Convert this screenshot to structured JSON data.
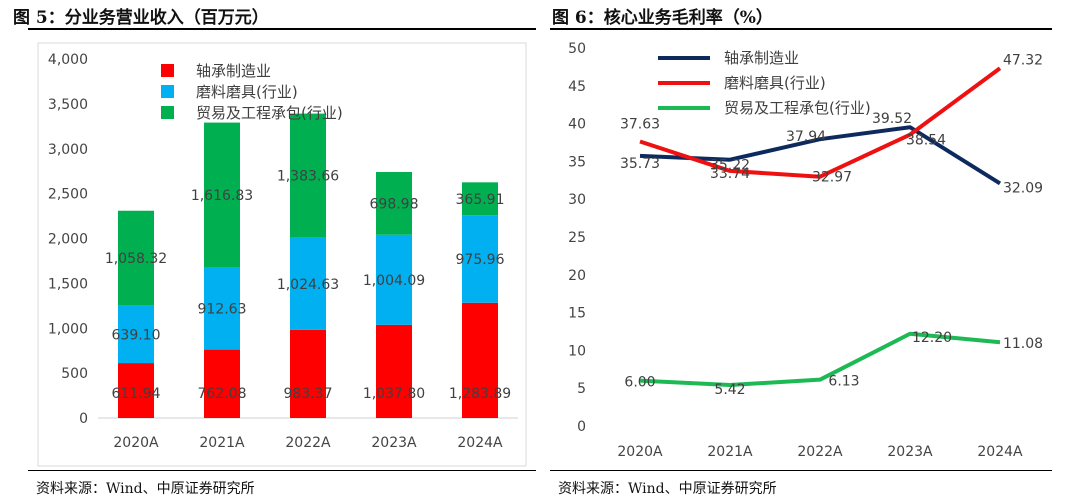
{
  "figures": [
    {
      "title": "图 5：分业务营业收入（百万元）",
      "source": "资料来源：Wind、中原证券研究所"
    },
    {
      "title": "图 6：核心业务毛利率（%）",
      "source": "资料来源：Wind、中原证券研究所"
    }
  ],
  "chart_data": [
    {
      "type": "bar",
      "stacked": true,
      "categories": [
        "2020A",
        "2021A",
        "2022A",
        "2023A",
        "2024A"
      ],
      "series": [
        {
          "name": "轴承制造业",
          "color": "#ff0000",
          "values": [
            611.94,
            762.08,
            983.37,
            1037.8,
            1283.89
          ],
          "labels": [
            "611.94",
            "762.08",
            "983.37",
            "1,037.80",
            "1,283.89"
          ]
        },
        {
          "name": "磨料磨具(行业)",
          "color": "#00b0f0",
          "values": [
            639.1,
            912.63,
            1024.63,
            1004.09,
            975.96
          ],
          "labels": [
            "639.10",
            "912.63",
            "1,024.63",
            "1,004.09",
            "975.96"
          ]
        },
        {
          "name": "贸易及工程承包(行业)",
          "color": "#00b050",
          "values": [
            1058.32,
            1616.83,
            1383.66,
            698.98,
            365.91
          ],
          "labels": [
            "1,058.32",
            "1,616.83",
            "1,383.66",
            "698.98",
            "365.91"
          ]
        }
      ],
      "ylim": [
        0,
        4000
      ],
      "yticks": [
        "0",
        "500",
        "1,000",
        "1,500",
        "2,000",
        "2,500",
        "3,000",
        "3,500",
        "4,000"
      ],
      "legend": "top-left",
      "grid": false
    },
    {
      "type": "line",
      "categories": [
        "2020A",
        "2021A",
        "2022A",
        "2023A",
        "2024A"
      ],
      "series": [
        {
          "name": "轴承制造业",
          "color": "#0d2a5e",
          "values": [
            35.73,
            35.22,
            37.94,
            39.52,
            32.09
          ],
          "labels": [
            "35.73",
            "35.22",
            "37.94",
            "39.52",
            "32.09"
          ]
        },
        {
          "name": "磨料磨具(行业)",
          "color": "#ee1111",
          "values": [
            37.63,
            33.74,
            32.97,
            38.54,
            47.32
          ],
          "labels": [
            "37.63",
            "33.74",
            "32.97",
            "38.54",
            "47.32"
          ]
        },
        {
          "name": "贸易及工程承包(行业)",
          "color": "#1db954",
          "values": [
            6.0,
            5.42,
            6.13,
            12.2,
            11.08
          ],
          "labels": [
            "6.00",
            "5.42",
            "6.13",
            "12.20",
            "11.08"
          ]
        }
      ],
      "ylim": [
        0,
        50
      ],
      "yticks": [
        "0",
        "5",
        "10",
        "15",
        "20",
        "25",
        "30",
        "35",
        "40",
        "45",
        "50"
      ],
      "legend": "top-left",
      "grid": false
    }
  ]
}
